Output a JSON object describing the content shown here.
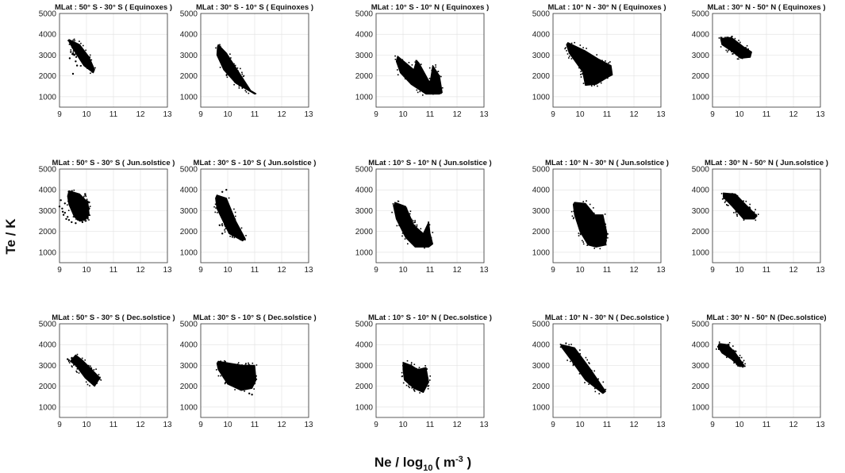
{
  "figure": {
    "ylabel": "Te / K",
    "xlabel_main": "Ne / log",
    "xlabel_sub": "10",
    "xlabel_open": "( m",
    "xlabel_sup": "-3",
    "xlabel_close": " )"
  },
  "chart_data": [
    {
      "type": "scatter",
      "title": "MLat : 50° S - 30° S ( Equinoxes )",
      "xlim": [
        9,
        13
      ],
      "ylim": [
        500,
        5000
      ],
      "xticks": [
        9,
        10,
        11,
        12,
        13
      ],
      "yticks": [
        1000,
        2000,
        3000,
        4000,
        5000
      ],
      "grid": true,
      "cluster": {
        "top": [
          [
            9.35,
            3750
          ],
          [
            9.75,
            3500
          ],
          [
            10.1,
            2900
          ],
          [
            10.3,
            2300
          ]
        ],
        "bottom": [
          [
            10.25,
            2150
          ],
          [
            9.9,
            2500
          ],
          [
            9.5,
            3300
          ],
          [
            9.35,
            3650
          ]
        ]
      },
      "outliers": [
        [
          9.42,
          3150
        ],
        [
          9.55,
          3000
        ],
        [
          9.6,
          2700
        ],
        [
          9.65,
          2500
        ],
        [
          9.5,
          2100
        ],
        [
          9.38,
          2850
        ],
        [
          9.48,
          3050
        ]
      ]
    },
    {
      "type": "scatter",
      "title": "MLat : 30° S - 10° S ( Equinoxes )",
      "xlim": [
        9,
        13
      ],
      "ylim": [
        500,
        5000
      ],
      "xticks": [
        9,
        10,
        11,
        12,
        13
      ],
      "yticks": [
        1000,
        2000,
        3000,
        4000,
        5000
      ],
      "grid": true,
      "cluster": {
        "top": [
          [
            9.65,
            3500
          ],
          [
            9.95,
            3100
          ],
          [
            10.35,
            2300
          ],
          [
            10.85,
            1300
          ],
          [
            11.05,
            1150
          ]
        ],
        "bottom": [
          [
            11.0,
            1130
          ],
          [
            10.3,
            1650
          ],
          [
            9.85,
            2300
          ],
          [
            9.6,
            3000
          ],
          [
            9.62,
            3400
          ]
        ]
      },
      "outliers": []
    },
    {
      "type": "scatter",
      "title": "MLat : 10° S - 10° N ( Equinoxes )",
      "xlim": [
        9,
        13
      ],
      "ylim": [
        500,
        5000
      ],
      "xticks": [
        9,
        10,
        11,
        12,
        13
      ],
      "yticks": [
        1000,
        2000,
        3000,
        4000,
        5000
      ],
      "grid": true,
      "cluster": {
        "top": [
          [
            9.8,
            2950
          ],
          [
            10.4,
            2300
          ],
          [
            10.5,
            2750
          ],
          [
            10.6,
            2600
          ],
          [
            11.0,
            1650
          ],
          [
            11.1,
            2500
          ],
          [
            11.35,
            2000
          ],
          [
            11.45,
            1200
          ]
        ],
        "bottom": [
          [
            11.35,
            1130
          ],
          [
            10.85,
            1130
          ],
          [
            10.3,
            1600
          ],
          [
            9.9,
            2150
          ],
          [
            9.75,
            2700
          ]
        ]
      },
      "outliers": []
    },
    {
      "type": "scatter",
      "title": "MLat : 10° N - 30° N  ( Equinoxes )",
      "xlim": [
        9,
        13
      ],
      "ylim": [
        500,
        5000
      ],
      "xticks": [
        9,
        10,
        11,
        12,
        13
      ],
      "yticks": [
        1000,
        2000,
        3000,
        4000,
        5000
      ],
      "grid": true,
      "cluster": {
        "top": [
          [
            9.55,
            3600
          ],
          [
            10.2,
            3200
          ],
          [
            10.7,
            2800
          ],
          [
            11.15,
            2500
          ],
          [
            11.2,
            2050
          ]
        ],
        "bottom": [
          [
            11.05,
            1950
          ],
          [
            10.6,
            1600
          ],
          [
            10.2,
            1550
          ],
          [
            10.1,
            2200
          ],
          [
            9.6,
            3100
          ],
          [
            9.5,
            3500
          ]
        ]
      },
      "outliers": []
    },
    {
      "type": "scatter",
      "title": "MLat : 30° N - 50° N ( Equinoxes )",
      "xlim": [
        9,
        13
      ],
      "ylim": [
        500,
        5000
      ],
      "xticks": [
        9,
        10,
        11,
        12,
        13
      ],
      "yticks": [
        1000,
        2000,
        3000,
        4000,
        5000
      ],
      "grid": true,
      "cluster": {
        "top": [
          [
            9.3,
            3800
          ],
          [
            9.7,
            3850
          ],
          [
            10.15,
            3400
          ],
          [
            10.45,
            3150
          ],
          [
            10.4,
            2900
          ]
        ],
        "bottom": [
          [
            10.05,
            2850
          ],
          [
            9.7,
            3200
          ],
          [
            9.35,
            3500
          ]
        ]
      },
      "outliers": []
    },
    {
      "type": "scatter",
      "title": "MLat : 50° S - 30° S ( Jun.solstice )",
      "xlim": [
        9,
        13
      ],
      "ylim": [
        500,
        5000
      ],
      "xticks": [
        9,
        10,
        11,
        12,
        13
      ],
      "yticks": [
        1000,
        2000,
        3000,
        4000,
        5000
      ],
      "grid": true,
      "cluster": {
        "top": [
          [
            9.35,
            3950
          ],
          [
            9.75,
            3800
          ],
          [
            10.05,
            3400
          ],
          [
            10.1,
            2800
          ],
          [
            9.95,
            2550
          ]
        ],
        "bottom": [
          [
            9.75,
            2500
          ],
          [
            9.55,
            2700
          ],
          [
            9.35,
            3300
          ],
          [
            9.3,
            3700
          ]
        ]
      },
      "outliers": [
        [
          9.0,
          3200
        ],
        [
          9.05,
          3500
        ],
        [
          9.1,
          3100
        ],
        [
          9.15,
          2800
        ],
        [
          9.2,
          2900
        ],
        [
          9.25,
          2600
        ],
        [
          9.3,
          2700
        ],
        [
          9.35,
          2550
        ],
        [
          9.45,
          2450
        ],
        [
          9.6,
          2400
        ],
        [
          9.7,
          2600
        ],
        [
          9.85,
          2450
        ],
        [
          10.05,
          2650
        ],
        [
          10.1,
          3100
        ],
        [
          10.1,
          3400
        ],
        [
          9.95,
          3800
        ],
        [
          9.2,
          3350
        ],
        [
          9.12,
          2950
        ],
        [
          9.85,
          3000
        ],
        [
          10.0,
          2950
        ]
      ]
    },
    {
      "type": "scatter",
      "title": "MLat : 30° S - 10° S ( Jun.solstice )",
      "xlim": [
        9,
        13
      ],
      "ylim": [
        500,
        5000
      ],
      "xticks": [
        9,
        10,
        11,
        12,
        13
      ],
      "yticks": [
        1000,
        2000,
        3000,
        4000,
        5000
      ],
      "grid": true,
      "cluster": {
        "top": [
          [
            9.6,
            3750
          ],
          [
            9.95,
            3600
          ],
          [
            10.3,
            2500
          ],
          [
            10.65,
            1650
          ]
        ],
        "bottom": [
          [
            10.55,
            1550
          ],
          [
            10.05,
            1900
          ],
          [
            9.6,
            3100
          ],
          [
            9.55,
            3600
          ]
        ]
      },
      "outliers": [
        [
          9.8,
          3900
        ],
        [
          9.95,
          4000
        ],
        [
          9.7,
          2300
        ],
        [
          9.8,
          1900
        ],
        [
          10.0,
          2100
        ]
      ]
    },
    {
      "type": "scatter",
      "title": "MLat : 10° S - 10° N ( Jun.solstice )",
      "xlim": [
        9,
        13
      ],
      "ylim": [
        500,
        5000
      ],
      "xticks": [
        9,
        10,
        11,
        12,
        13
      ],
      "yticks": [
        1000,
        2000,
        3000,
        4000,
        5000
      ],
      "grid": true,
      "cluster": {
        "top": [
          [
            9.7,
            3400
          ],
          [
            10.1,
            3200
          ],
          [
            10.4,
            2300
          ],
          [
            10.75,
            1900
          ],
          [
            10.95,
            2450
          ],
          [
            11.0,
            1900
          ],
          [
            11.1,
            1400
          ]
        ],
        "bottom": [
          [
            10.95,
            1250
          ],
          [
            10.45,
            1250
          ],
          [
            10.1,
            1700
          ],
          [
            9.75,
            2600
          ],
          [
            9.65,
            3200
          ]
        ]
      },
      "outliers": []
    },
    {
      "type": "scatter",
      "title": "MLat : 10° N - 30° N  ( Jun.solstice )",
      "xlim": [
        9,
        13
      ],
      "ylim": [
        500,
        5000
      ],
      "xticks": [
        9,
        10,
        11,
        12,
        13
      ],
      "yticks": [
        1000,
        2000,
        3000,
        4000,
        5000
      ],
      "grid": true,
      "cluster": {
        "top": [
          [
            9.8,
            3400
          ],
          [
            10.2,
            3350
          ],
          [
            10.55,
            2800
          ],
          [
            10.85,
            2800
          ],
          [
            11.0,
            1900
          ],
          [
            10.95,
            1350
          ]
        ],
        "bottom": [
          [
            10.6,
            1250
          ],
          [
            10.3,
            1350
          ],
          [
            10.0,
            2000
          ],
          [
            9.8,
            2800
          ],
          [
            9.75,
            3300
          ]
        ]
      },
      "outliers": []
    },
    {
      "type": "scatter",
      "title": "MLat : 30° N - 50° N ( Jun.solstice )",
      "xlim": [
        9,
        13
      ],
      "ylim": [
        500,
        5000
      ],
      "xticks": [
        9,
        10,
        11,
        12,
        13
      ],
      "yticks": [
        1000,
        2000,
        3000,
        4000,
        5000
      ],
      "grid": true,
      "cluster": {
        "top": [
          [
            9.4,
            3850
          ],
          [
            9.85,
            3800
          ],
          [
            10.3,
            3200
          ],
          [
            10.65,
            2750
          ]
        ],
        "bottom": [
          [
            10.55,
            2600
          ],
          [
            10.15,
            2600
          ],
          [
            9.7,
            3250
          ],
          [
            9.4,
            3650
          ]
        ]
      },
      "outliers": []
    },
    {
      "type": "scatter",
      "title": "MLat : 50° S - 30° S ( Dec.solstice )",
      "xlim": [
        9,
        13
      ],
      "ylim": [
        500,
        5000
      ],
      "xticks": [
        9,
        10,
        11,
        12,
        13
      ],
      "yticks": [
        1000,
        2000,
        3000,
        4000,
        5000
      ],
      "grid": true,
      "cluster": {
        "top": [
          [
            9.6,
            3500
          ],
          [
            9.85,
            3250
          ],
          [
            10.2,
            2800
          ],
          [
            10.5,
            2400
          ]
        ],
        "bottom": [
          [
            10.3,
            2000
          ],
          [
            9.95,
            2400
          ],
          [
            9.6,
            3000
          ],
          [
            9.4,
            3200
          ]
        ]
      },
      "outliers": [
        [
          9.3,
          3300
        ],
        [
          9.35,
          3250
        ],
        [
          9.45,
          3350
        ]
      ]
    },
    {
      "type": "scatter",
      "title": "MLat : 30° S - 10° S ( Dec.solstice )",
      "xlim": [
        9,
        13
      ],
      "ylim": [
        500,
        5000
      ],
      "xticks": [
        9,
        10,
        11,
        12,
        13
      ],
      "yticks": [
        1000,
        2000,
        3000,
        4000,
        5000
      ],
      "grid": true,
      "cluster": {
        "top": [
          [
            9.65,
            3200
          ],
          [
            10.1,
            3100
          ],
          [
            10.55,
            3000
          ],
          [
            11.0,
            3000
          ],
          [
            11.05,
            2300
          ]
        ],
        "bottom": [
          [
            10.9,
            1900
          ],
          [
            10.5,
            1800
          ],
          [
            10.0,
            2100
          ],
          [
            9.65,
            2800
          ],
          [
            9.6,
            3100
          ]
        ]
      },
      "outliers": [
        [
          10.9,
          1600
        ],
        [
          10.8,
          1650
        ]
      ]
    },
    {
      "type": "scatter",
      "title": "MLat : 10° S - 10° N ( Dec.solstice )",
      "xlim": [
        9,
        13
      ],
      "ylim": [
        500,
        5000
      ],
      "xticks": [
        9,
        10,
        11,
        12,
        13
      ],
      "yticks": [
        1000,
        2000,
        3000,
        4000,
        5000
      ],
      "grid": true,
      "cluster": {
        "top": [
          [
            10.0,
            3150
          ],
          [
            10.3,
            3000
          ],
          [
            10.55,
            2800
          ],
          [
            10.85,
            2900
          ],
          [
            10.95,
            2200
          ]
        ],
        "bottom": [
          [
            10.75,
            1700
          ],
          [
            10.4,
            1900
          ],
          [
            10.05,
            2300
          ],
          [
            10.0,
            2800
          ]
        ]
      },
      "outliers": []
    },
    {
      "type": "scatter",
      "title": "MLat : 10° N - 30° N  ( Dec.solstice )",
      "xlim": [
        9,
        13
      ],
      "ylim": [
        500,
        5000
      ],
      "xticks": [
        9,
        10,
        11,
        12,
        13
      ],
      "yticks": [
        1000,
        2000,
        3000,
        4000,
        5000
      ],
      "grid": true,
      "cluster": {
        "top": [
          [
            9.3,
            4000
          ],
          [
            9.8,
            3850
          ],
          [
            10.4,
            2800
          ],
          [
            10.95,
            1750
          ]
        ],
        "bottom": [
          [
            10.85,
            1650
          ],
          [
            10.2,
            2300
          ],
          [
            9.65,
            3300
          ],
          [
            9.3,
            3900
          ]
        ]
      },
      "outliers": []
    },
    {
      "type": "scatter",
      "title": "MLat : 30° N - 50° N (Dec.solstice)",
      "xlim": [
        9,
        13
      ],
      "ylim": [
        500,
        5000
      ],
      "xticks": [
        9,
        10,
        11,
        12,
        13
      ],
      "yticks": [
        1000,
        2000,
        3000,
        4000,
        5000
      ],
      "grid": true,
      "cluster": {
        "top": [
          [
            9.25,
            4050
          ],
          [
            9.55,
            4000
          ],
          [
            9.85,
            3600
          ],
          [
            10.2,
            2950
          ]
        ],
        "bottom": [
          [
            10.0,
            2950
          ],
          [
            9.7,
            3300
          ],
          [
            9.35,
            3600
          ],
          [
            9.2,
            3900
          ]
        ]
      },
      "outliers": []
    }
  ]
}
